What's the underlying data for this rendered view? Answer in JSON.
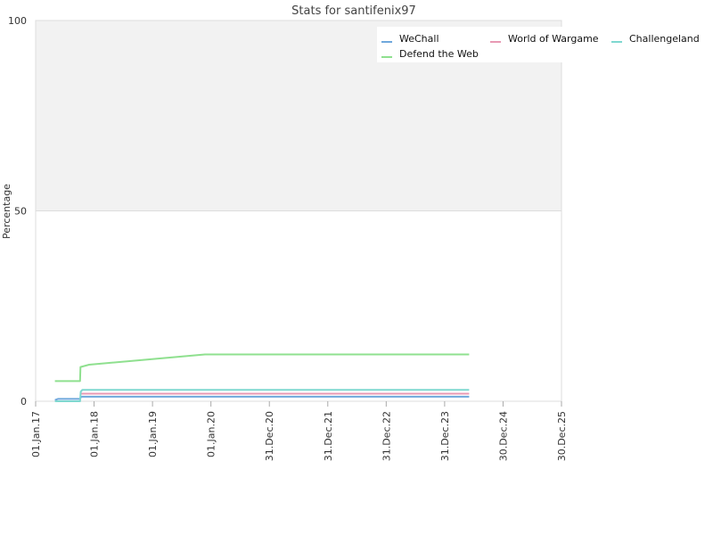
{
  "chart_data": {
    "type": "line",
    "title": "Stats for santifenix97",
    "xlabel": "",
    "ylabel": "Percentage",
    "ylim": [
      0,
      100
    ],
    "yticks": [
      0,
      50,
      100
    ],
    "x_range": [
      "2017-01-01",
      "2025-12-30"
    ],
    "x_ticks": [
      {
        "date": "2017-01-01",
        "label": "01.Jan.17"
      },
      {
        "date": "2018-01-01",
        "label": "01.Jan.18"
      },
      {
        "date": "2019-01-01",
        "label": "01.Jan.19"
      },
      {
        "date": "2020-01-01",
        "label": "01.Jan.20"
      },
      {
        "date": "2020-12-31",
        "label": "31.Dec.20"
      },
      {
        "date": "2021-12-31",
        "label": "31.Dec.21"
      },
      {
        "date": "2022-12-31",
        "label": "31.Dec.22"
      },
      {
        "date": "2023-12-31",
        "label": "31.Dec.23"
      },
      {
        "date": "2024-12-30",
        "label": "30.Dec.24"
      },
      {
        "date": "2025-12-30",
        "label": "30.Dec.25"
      }
    ],
    "grid": "horizontal",
    "shaded_band": [
      50,
      100
    ],
    "legend_position": "top-right",
    "series": [
      {
        "name": "WeChall",
        "color": "#6fa8dc",
        "points": [
          [
            "2017-05-01",
            0.3
          ],
          [
            "2017-05-20",
            0.6
          ],
          [
            "2017-10-05",
            0.6
          ],
          [
            "2017-10-12",
            1.2
          ],
          [
            "2024-06-01",
            1.2
          ]
        ]
      },
      {
        "name": "World of Wargame",
        "color": "#e899b4",
        "points": [
          [
            "2017-10-12",
            2.0
          ],
          [
            "2024-06-01",
            2.0
          ]
        ]
      },
      {
        "name": "Challengeland",
        "color": "#7fd8d0",
        "points": [
          [
            "2017-05-01",
            0.0
          ],
          [
            "2017-10-05",
            0.0
          ],
          [
            "2017-10-10",
            2.5
          ],
          [
            "2017-10-20",
            3.0
          ],
          [
            "2024-06-01",
            3.0
          ]
        ]
      },
      {
        "name": "Defend the Web",
        "color": "#8fe08f",
        "points": [
          [
            "2017-05-01",
            5.3
          ],
          [
            "2017-10-05",
            5.3
          ],
          [
            "2017-10-08",
            9.0
          ],
          [
            "2017-12-01",
            9.6
          ],
          [
            "2019-11-25",
            12.3
          ],
          [
            "2024-06-01",
            12.3
          ]
        ]
      }
    ]
  }
}
